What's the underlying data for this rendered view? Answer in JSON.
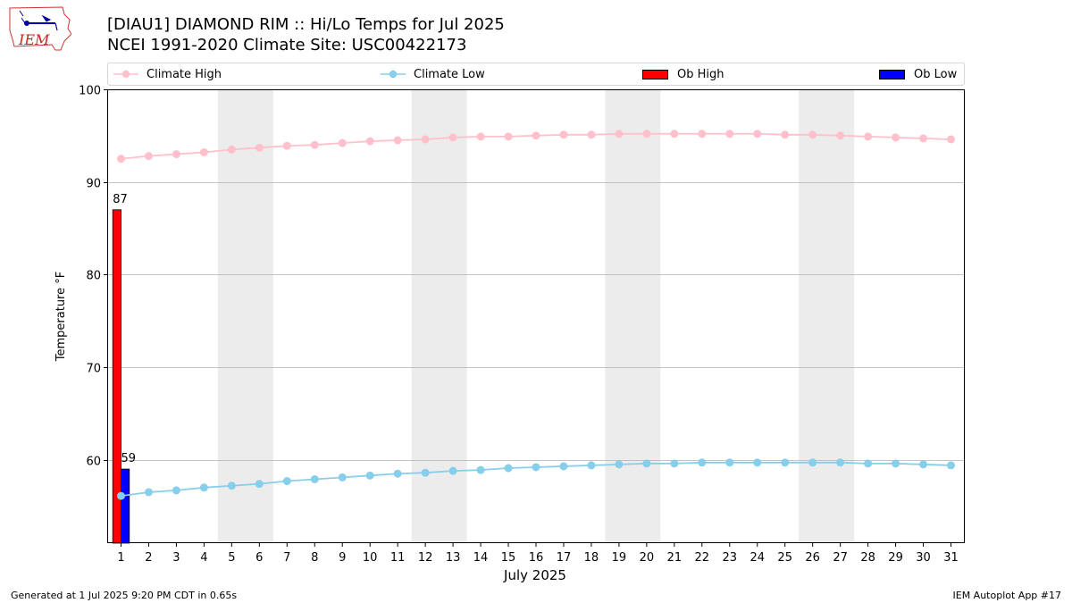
{
  "header": {
    "title_line1": "[DIAU1] DIAMOND RIM :: Hi/Lo Temps for Jul 2025",
    "title_line2": "NCEI 1991-2020 Climate Site: USC00422173",
    "logo_text": "IEM"
  },
  "legend": {
    "climate_high": "Climate High",
    "climate_low": "Climate Low",
    "ob_high": "Ob High",
    "ob_low": "Ob Low"
  },
  "colors": {
    "climate_high": "#ffc0cb",
    "climate_low": "#87ceeb",
    "ob_high": "#ff0000",
    "ob_low": "#0000ff",
    "weekend_shade": "#ececec",
    "grid": "#b0b0b0"
  },
  "footer": {
    "generated": "Generated at 1 Jul 2025 9:20 PM CDT in 0.65s",
    "app": "IEM Autoplot App #17"
  },
  "chart_data": {
    "type": "bar+line",
    "title": "[DIAU1] DIAMOND RIM :: Hi/Lo Temps for Jul 2025",
    "subtitle": "NCEI 1991-2020 Climate Site: USC00422173",
    "xlabel": "July 2025",
    "ylabel": "Temperature °F",
    "xlim": [
      0.5,
      31.5
    ],
    "ylim": [
      51,
      100
    ],
    "yticks": [
      60,
      70,
      80,
      90,
      100
    ],
    "days": [
      1,
      2,
      3,
      4,
      5,
      6,
      7,
      8,
      9,
      10,
      11,
      12,
      13,
      14,
      15,
      16,
      17,
      18,
      19,
      20,
      21,
      22,
      23,
      24,
      25,
      26,
      27,
      28,
      29,
      30,
      31
    ],
    "weekend_bands": [
      [
        5,
        6
      ],
      [
        12,
        13
      ],
      [
        19,
        20
      ],
      [
        26,
        27
      ]
    ],
    "series": [
      {
        "name": "Climate High",
        "type": "line",
        "values": [
          92.5,
          92.8,
          93.0,
          93.2,
          93.5,
          93.7,
          93.9,
          94.0,
          94.2,
          94.4,
          94.5,
          94.6,
          94.8,
          94.9,
          94.9,
          95.0,
          95.1,
          95.1,
          95.2,
          95.2,
          95.2,
          95.2,
          95.2,
          95.2,
          95.1,
          95.1,
          95.0,
          94.9,
          94.8,
          94.7,
          94.6
        ]
      },
      {
        "name": "Climate Low",
        "type": "line",
        "values": [
          56.1,
          56.5,
          56.7,
          57.0,
          57.2,
          57.4,
          57.7,
          57.9,
          58.1,
          58.3,
          58.5,
          58.6,
          58.8,
          58.9,
          59.1,
          59.2,
          59.3,
          59.4,
          59.5,
          59.6,
          59.6,
          59.7,
          59.7,
          59.7,
          59.7,
          59.7,
          59.7,
          59.6,
          59.6,
          59.5,
          59.4
        ]
      },
      {
        "name": "Ob High",
        "type": "bar",
        "days": [
          1
        ],
        "values": [
          87
        ],
        "labels": [
          "87"
        ]
      },
      {
        "name": "Ob Low",
        "type": "bar",
        "days": [
          1
        ],
        "values": [
          59
        ],
        "labels": [
          "59"
        ]
      }
    ]
  }
}
